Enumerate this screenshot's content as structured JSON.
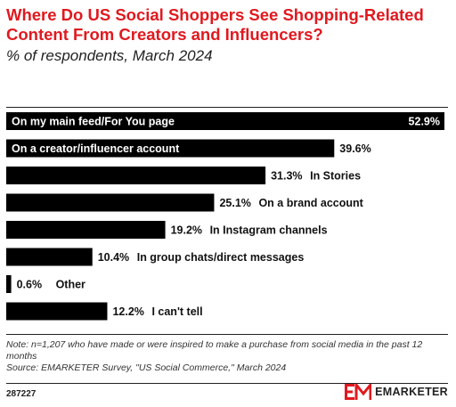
{
  "header": {
    "title": "Where Do US Social Shoppers See Shopping-Related Content From Creators and Influencers?",
    "subtitle": "% of respondents, March 2024"
  },
  "chart_data": {
    "type": "bar",
    "orientation": "horizontal",
    "categories": [
      "On my main feed/For You page",
      "On a creator/influencer account",
      "In Stories",
      "On a brand account",
      "In Instagram channels",
      "In group chats/direct messages",
      "Other",
      "I can't tell"
    ],
    "values": [
      52.9,
      39.6,
      31.3,
      25.1,
      19.2,
      10.4,
      0.6,
      12.2
    ],
    "value_labels": [
      "52.9%",
      "39.6%",
      "31.3%",
      "25.1%",
      "19.2%",
      "10.4%",
      "0.6%",
      "12.2%"
    ],
    "bar_color": "#000000",
    "xlim": [
      0,
      52.9
    ],
    "grid": false
  },
  "footer": {
    "note": "Note: n=1,207 who have made or were inspired to make a purchase from social media in the past 12 months",
    "source": "Source: EMARKETER Survey, \"US Social Commerce,\" March 2024",
    "chart_id": "287227",
    "brand": "EMARKETER",
    "brand_color": "#e0191f"
  }
}
